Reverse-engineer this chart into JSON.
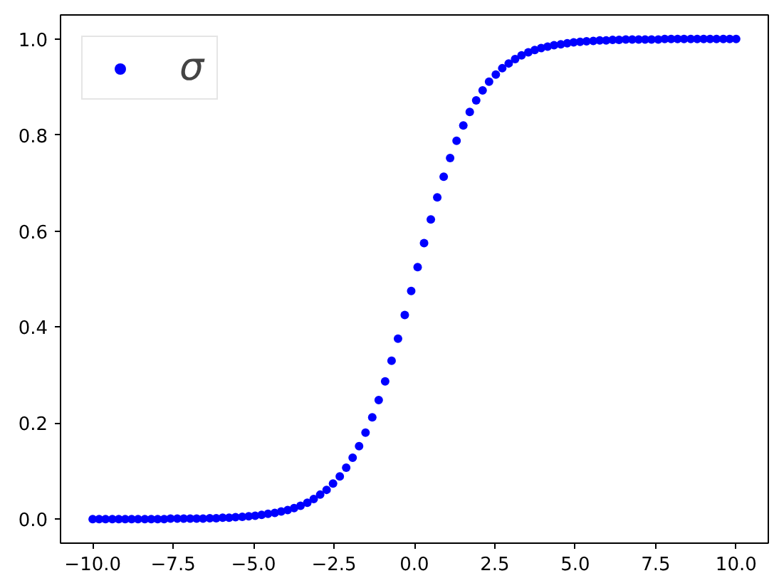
{
  "chart_data": {
    "type": "scatter",
    "marker": "circle",
    "grid": false,
    "legend": "top left",
    "xlim": [
      -11,
      11
    ],
    "ylim": [
      -0.05,
      1.05
    ],
    "xticks": [
      {
        "value": -10,
        "label": "−10.0"
      },
      {
        "value": -7.5,
        "label": "−7.5"
      },
      {
        "value": -5,
        "label": "−5.0"
      },
      {
        "value": -2.5,
        "label": "−2.5"
      },
      {
        "value": 0,
        "label": "0.0"
      },
      {
        "value": 2.5,
        "label": "2.5"
      },
      {
        "value": 5,
        "label": "5.0"
      },
      {
        "value": 7.5,
        "label": "7.5"
      },
      {
        "value": 10,
        "label": "10.0"
      }
    ],
    "yticks": [
      {
        "value": 0,
        "label": "0.0"
      },
      0.2,
      0.4,
      0.6,
      0.8,
      {
        "value": 1,
        "label": "1.0"
      }
    ],
    "x": [
      -10,
      -9.8,
      -9.6,
      -9.39,
      -9.19,
      -8.99,
      -8.79,
      -8.59,
      -8.38,
      -8.18,
      -7.98,
      -7.78,
      -7.58,
      -7.37,
      -7.17,
      -6.97,
      -6.77,
      -6.57,
      -6.36,
      -6.16,
      -5.96,
      -5.76,
      -5.56,
      -5.35,
      -5.15,
      -4.95,
      -4.75,
      -4.55,
      -4.34,
      -4.14,
      -3.94,
      -3.74,
      -3.54,
      -3.33,
      -3.13,
      -2.93,
      -2.73,
      -2.53,
      -2.32,
      -2.12,
      -1.92,
      -1.72,
      -1.52,
      -1.31,
      -1.11,
      -0.91,
      -0.71,
      -0.51,
      -0.3,
      -0.1,
      0.1,
      0.3,
      0.51,
      0.71,
      0.91,
      1.11,
      1.31,
      1.52,
      1.72,
      1.92,
      2.12,
      2.32,
      2.53,
      2.73,
      2.93,
      3.13,
      3.33,
      3.54,
      3.74,
      3.94,
      4.14,
      4.34,
      4.55,
      4.75,
      4.95,
      5.15,
      5.35,
      5.56,
      5.76,
      5.96,
      6.16,
      6.36,
      6.57,
      6.77,
      6.97,
      7.17,
      7.37,
      7.58,
      7.78,
      7.98,
      8.18,
      8.38,
      8.59,
      8.79,
      8.99,
      9.19,
      9.39,
      9.6,
      9.8,
      10
    ],
    "series": [
      {
        "name": "σ",
        "color": "#0000ff",
        "values": [
          0,
          0,
          0,
          0,
          0,
          0,
          0,
          0,
          0,
          0,
          0,
          0,
          0.001,
          0.001,
          0.001,
          0.001,
          0.001,
          0.001,
          0.002,
          0.002,
          0.003,
          0.003,
          0.004,
          0.005,
          0.006,
          0.007,
          0.009,
          0.011,
          0.013,
          0.016,
          0.019,
          0.023,
          0.028,
          0.034,
          0.042,
          0.051,
          0.061,
          0.074,
          0.089,
          0.107,
          0.128,
          0.152,
          0.18,
          0.212,
          0.248,
          0.287,
          0.33,
          0.376,
          0.425,
          0.475,
          0.525,
          0.575,
          0.624,
          0.67,
          0.713,
          0.752,
          0.788,
          0.82,
          0.848,
          0.872,
          0.893,
          0.911,
          0.926,
          0.939,
          0.949,
          0.958,
          0.966,
          0.972,
          0.977,
          0.981,
          0.984,
          0.987,
          0.989,
          0.991,
          0.993,
          0.994,
          0.995,
          0.996,
          0.997,
          0.997,
          0.998,
          0.998,
          0.999,
          0.999,
          0.999,
          0.999,
          0.999,
          0.999,
          1,
          1,
          1,
          1,
          1,
          1,
          1,
          1,
          1,
          1,
          1,
          1
        ]
      }
    ]
  }
}
